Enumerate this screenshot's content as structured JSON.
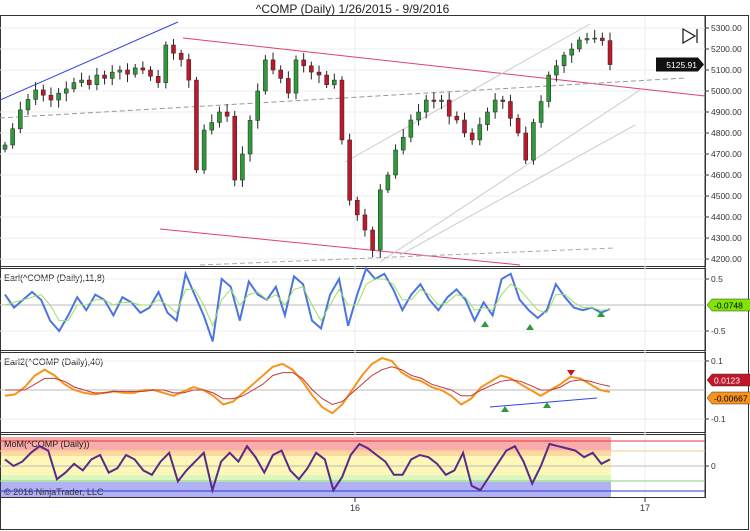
{
  "window": {
    "title": "^COMP (Daily)  1/26/2015 - 9/9/2016",
    "copyright": "© 2016 NinjaTrader, LLC",
    "scroll_end_icon": "skip-to-end-icon"
  },
  "chart_data": [
    {
      "type": "candlestick",
      "name": "^COMP (Daily)",
      "ylim": [
        4200,
        5300
      ],
      "yticks": [
        "5300.00",
        "5200.00",
        "5100.00",
        "5000.00",
        "4900.00",
        "4800.00",
        "4700.00",
        "4600.00",
        "4500.00",
        "4400.00",
        "4300.00",
        "4200.00"
      ],
      "xticks": [
        "16",
        "17"
      ],
      "last_value": "5125.91",
      "grid": true,
      "closes": [
        4743,
        4820,
        4910,
        4960,
        5005,
        4980,
        4957,
        4990,
        5010,
        5040,
        5052,
        5030,
        5076,
        5060,
        5090,
        5100,
        5080,
        5110,
        5100,
        5070,
        5040,
        5219,
        5180,
        5150,
        5052,
        4624,
        4814,
        4850,
        4900,
        4880,
        4576,
        4700,
        4860,
        5000,
        5148,
        5100,
        5060,
        4990,
        5148,
        5120,
        5090,
        5076,
        5030,
        5052,
        4767,
        4480,
        4410,
        4338,
        4243,
        4529,
        4600,
        4719,
        4780,
        4862,
        4900,
        4957,
        4950,
        4957,
        4880,
        4862,
        4800,
        4767,
        4840,
        4900,
        4957,
        4950,
        4870,
        4800,
        4671,
        4850,
        4950,
        5076,
        5120,
        5171,
        5200,
        5243,
        5250,
        5252,
        5240,
        5125.91
      ]
    },
    {
      "type": "line",
      "title": "Earl(^COMP (Daily),11,8)",
      "yticks": [
        "0.5",
        "-0.5"
      ],
      "last_value": "-0.0748",
      "series": [
        {
          "color": "#4a74e0",
          "values": [
            0.2,
            -0.05,
            0.1,
            0.25,
            0.1,
            -0.3,
            -0.5,
            -0.2,
            0.15,
            -0.1,
            0.2,
            0.1,
            -0.2,
            0.15,
            0.05,
            -0.15,
            -0.05,
            0.25,
            -0.15,
            -0.3,
            0.6,
            0.2,
            -0.2,
            -0.7,
            0.5,
            0.35,
            -0.3,
            0.45,
            0.2,
            0.1,
            0.35,
            -0.2,
            0.55,
            0.4,
            -0.3,
            -0.45,
            0.2,
            0.5,
            -0.4,
            0.2,
            0.7,
            0.5,
            0.6,
            0.3,
            -0.1,
            0.2,
            0.4,
            0.1,
            -0.1,
            0.15,
            0.3,
            0.1,
            -0.3,
            0.05,
            -0.2,
            0.5,
            0.6,
            0.1,
            -0.1,
            -0.25,
            -0.1,
            0.4,
            0.15,
            -0.05,
            -0.1,
            -0.05,
            -0.15,
            -0.0748
          ]
        },
        {
          "color": "#9be063",
          "values": [
            0.0,
            0.05,
            0.1,
            0.15,
            0.2,
            0.0,
            -0.3,
            -0.3,
            0.0,
            0.0,
            0.1,
            0.1,
            0.0,
            0.05,
            0.05,
            0.0,
            0.0,
            0.1,
            0.0,
            -0.15,
            0.3,
            0.3,
            0.0,
            -0.4,
            0.1,
            0.3,
            0.0,
            0.2,
            0.25,
            0.1,
            0.2,
            0.0,
            0.3,
            0.35,
            0.0,
            -0.3,
            0.0,
            0.3,
            0.0,
            0.0,
            0.4,
            0.5,
            0.5,
            0.4,
            0.1,
            0.1,
            0.3,
            0.2,
            0.0,
            0.05,
            0.2,
            0.15,
            -0.1,
            -0.05,
            -0.1,
            0.2,
            0.4,
            0.3,
            0.1,
            -0.1,
            -0.15,
            0.2,
            0.2,
            0.05,
            -0.05,
            -0.05,
            -0.1,
            -0.08
          ]
        }
      ]
    },
    {
      "type": "line",
      "title": "Earl2(^COMP (Daily),40)",
      "yticks": [
        "0.1",
        "-0.1"
      ],
      "last_values": [
        "0.0123",
        "-0.00667"
      ],
      "series": [
        {
          "color": "#f7941d",
          "values": [
            -0.02,
            -0.015,
            0.01,
            0.05,
            0.07,
            0.05,
            0.02,
            0.0,
            -0.01,
            -0.015,
            -0.01,
            -0.005,
            -0.01,
            -0.01,
            0.0,
            0.0,
            -0.01,
            -0.02,
            -0.005,
            0.01,
            0.0,
            -0.02,
            -0.05,
            -0.04,
            -0.01,
            0.02,
            0.05,
            0.08,
            0.09,
            0.07,
            0.03,
            -0.02,
            -0.06,
            -0.08,
            -0.05,
            0.0,
            0.05,
            0.09,
            0.11,
            0.1,
            0.06,
            0.04,
            0.03,
            0.01,
            0.0,
            -0.02,
            -0.05,
            -0.03,
            0.01,
            0.03,
            0.05,
            0.04,
            0.02,
            0.0,
            -0.02,
            0.0,
            0.02,
            0.045,
            0.04,
            0.02,
            0.0,
            -0.00667
          ]
        },
        {
          "color": "#c0393b",
          "values": [
            0.0,
            0.0,
            0.0,
            0.02,
            0.04,
            0.04,
            0.03,
            0.01,
            0.0,
            -0.01,
            -0.01,
            -0.005,
            -0.005,
            -0.005,
            -0.005,
            0.0,
            0.0,
            -0.01,
            -0.01,
            0.0,
            0.0,
            -0.01,
            -0.03,
            -0.03,
            -0.02,
            0.0,
            0.02,
            0.05,
            0.06,
            0.06,
            0.04,
            0.0,
            -0.03,
            -0.05,
            -0.04,
            -0.01,
            0.02,
            0.05,
            0.07,
            0.08,
            0.07,
            0.05,
            0.04,
            0.02,
            0.01,
            0.0,
            -0.02,
            -0.02,
            0.0,
            0.015,
            0.03,
            0.035,
            0.03,
            0.015,
            0.0,
            0.0,
            0.01,
            0.03,
            0.035,
            0.03,
            0.02,
            0.0123
          ]
        }
      ]
    },
    {
      "type": "line",
      "title": "MoM(^COMP (Daily))",
      "yticks": [
        "0"
      ],
      "series": [
        {
          "color": "#5b2a86",
          "values": [
            0.3,
            0.0,
            0.2,
            0.6,
            0.9,
            0.7,
            -0.6,
            -0.3,
            0.1,
            -0.2,
            0.3,
            0.5,
            -0.3,
            -0.1,
            0.5,
            0.3,
            -0.2,
            -0.4,
            0.2,
            0.6,
            -0.7,
            -0.2,
            0.2,
            0.6,
            -1.1,
            0.2,
            0.6,
            0.2,
            0.9,
            0.4,
            -0.3,
            0.5,
            0.7,
            -0.2,
            -0.6,
            -0.1,
            0.6,
            0.3,
            -1.1,
            -0.5,
            0.5,
            1.0,
            0.8,
            0.5,
            0.2,
            -0.4,
            -0.4,
            0.3,
            0.5,
            0.4,
            0.1,
            -0.4,
            -0.2,
            0.6,
            -0.9,
            -1.1,
            -0.5,
            0.1,
            0.7,
            0.9,
            0.2,
            -0.8,
            0.0,
            1.0,
            0.9,
            0.8,
            0.7,
            0.4,
            0.6,
            0.1,
            0.3
          ]
        }
      ],
      "bands": [
        "#f7a3a3",
        "#fbd49a",
        "#fdf6b0",
        "#d8f5b8",
        "#a9a9f5"
      ]
    }
  ]
}
